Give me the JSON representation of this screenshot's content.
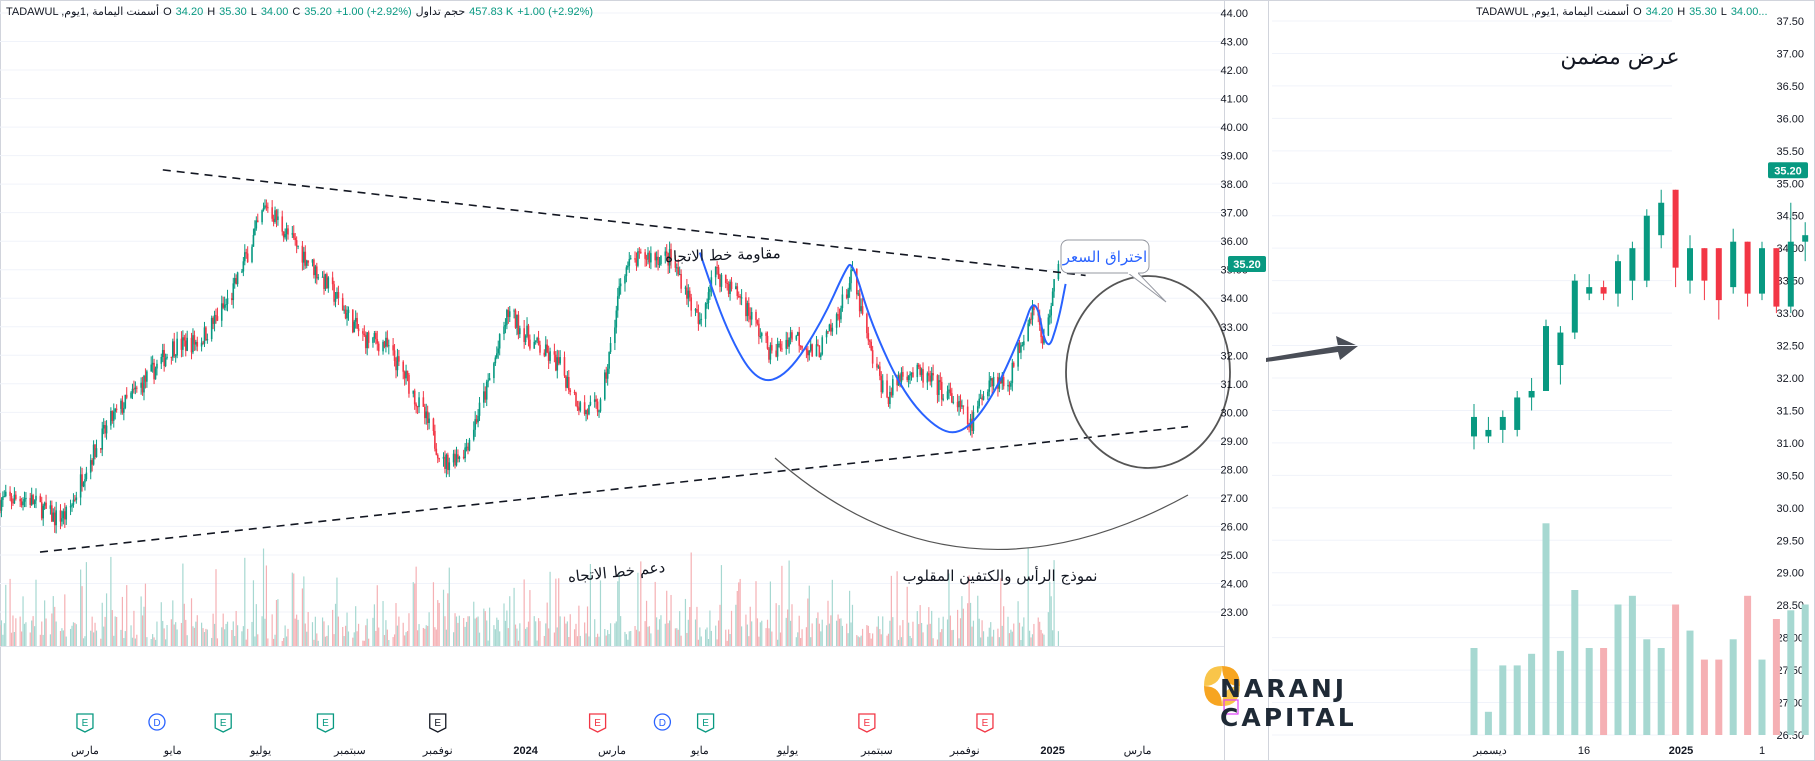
{
  "header": {
    "main": {
      "symbol": "TADAWUL ,أسمنت اليمامة ,1يوم",
      "open_label": "O",
      "open": "34.20",
      "high_label": "H",
      "high": "35.30",
      "low_label": "L",
      "low": "34.00",
      "close_label": "C",
      "close": "35.20",
      "change": "+1.00 (+2.92%)",
      "volume_label": "حجم تداول",
      "volume": "457.83 K",
      "volume_change": "+1.00 (+2.92%)"
    },
    "inset": {
      "symbol": "TADAWUL ,أسمنت اليمامة ,1يوم",
      "open_label": "O",
      "open": "34.20",
      "high_label": "H",
      "high": "35.30",
      "low_label": "L",
      "low": "34.00..."
    }
  },
  "brand": {
    "line1": "NARANJ",
    "line2": "CAPITAL"
  },
  "colors": {
    "up": "#089981",
    "down": "#f23645",
    "vol_up": "#a6d8d1",
    "vol_down": "#f5b0b4",
    "pattern_line": "#2962ff",
    "annotation": "#555555",
    "trend_line": "#131722",
    "grid": "#f0f3fa",
    "brand_orange": "#f7a521"
  },
  "chart_data": [
    {
      "id": "main",
      "type": "candlestick",
      "title": "",
      "xlabel": "",
      "ylabel": "",
      "ylim": [
        22.5,
        44.0
      ],
      "y_ticks": [
        "23.00",
        "24.00",
        "25.00",
        "26.00",
        "27.00",
        "28.00",
        "29.00",
        "30.00",
        "31.00",
        "32.00",
        "33.00",
        "34.00",
        "35.00",
        "36.00",
        "37.00",
        "38.00",
        "39.00",
        "40.00",
        "41.00",
        "42.00",
        "43.00",
        "44.00"
      ],
      "x_range": [
        "2023-01-01",
        "2025-04-30"
      ],
      "x_ticks": [
        {
          "date": "2023-03-01",
          "label": "مارس"
        },
        {
          "date": "2023-05-01",
          "label": "مايو"
        },
        {
          "date": "2023-07-01",
          "label": "يوليو"
        },
        {
          "date": "2023-09-01",
          "label": "سبتمبر"
        },
        {
          "date": "2023-11-01",
          "label": "نوفمبر"
        },
        {
          "date": "2024-01-01",
          "label": "2024",
          "bold": true
        },
        {
          "date": "2024-03-01",
          "label": "مارس"
        },
        {
          "date": "2024-05-01",
          "label": "مايو"
        },
        {
          "date": "2024-07-01",
          "label": "يوليو"
        },
        {
          "date": "2024-09-01",
          "label": "سبتمبر"
        },
        {
          "date": "2024-11-01",
          "label": "نوفمبر"
        },
        {
          "date": "2025-01-01",
          "label": "2025",
          "bold": true
        },
        {
          "date": "2025-03-01",
          "label": "مارس"
        },
        {
          "date": "2025-05-01",
          "label": "مايو"
        }
      ],
      "price_path": [
        [
          "2023-01-01",
          26.9
        ],
        [
          "2023-01-20",
          27.0
        ],
        [
          "2023-02-08",
          26.3
        ],
        [
          "2023-02-17",
          26.4
        ],
        [
          "2023-03-01",
          28.0
        ],
        [
          "2023-03-20",
          29.8
        ],
        [
          "2023-04-15",
          31.3
        ],
        [
          "2023-05-01",
          32.3
        ],
        [
          "2023-05-20",
          32.5
        ],
        [
          "2023-06-10",
          34.0
        ],
        [
          "2023-06-25",
          36.0
        ],
        [
          "2023-07-05",
          37.3
        ],
        [
          "2023-07-20",
          36.2
        ],
        [
          "2023-08-05",
          35.2
        ],
        [
          "2023-08-20",
          34.2
        ],
        [
          "2023-09-10",
          32.6
        ],
        [
          "2023-09-25",
          32.4
        ],
        [
          "2023-10-10",
          31.2
        ],
        [
          "2023-10-25",
          29.6
        ],
        [
          "2023-11-05",
          28.2
        ],
        [
          "2023-11-20",
          28.7
        ],
        [
          "2023-12-05",
          30.8
        ],
        [
          "2023-12-20",
          33.5
        ],
        [
          "2024-01-05",
          32.5
        ],
        [
          "2024-01-25",
          31.6
        ],
        [
          "2024-02-10",
          30.0
        ],
        [
          "2024-02-22",
          30.2
        ],
        [
          "2024-03-01",
          32.5
        ],
        [
          "2024-03-08",
          35.0
        ],
        [
          "2024-03-25",
          35.5
        ],
        [
          "2024-04-10",
          35.4
        ],
        [
          "2024-04-20",
          34.5
        ],
        [
          "2024-05-01",
          33.0
        ],
        [
          "2024-05-10",
          35.0
        ],
        [
          "2024-05-30",
          34.0
        ],
        [
          "2024-06-20",
          32.0
        ],
        [
          "2024-07-05",
          32.8
        ],
        [
          "2024-07-20",
          32.0
        ],
        [
          "2024-08-01",
          32.9
        ],
        [
          "2024-08-15",
          34.8
        ],
        [
          "2024-08-28",
          32.0
        ],
        [
          "2024-09-08",
          30.5
        ],
        [
          "2024-09-20",
          31.5
        ],
        [
          "2024-10-05",
          31.2
        ],
        [
          "2024-10-25",
          30.4
        ],
        [
          "2024-11-05",
          29.5
        ],
        [
          "2024-11-18",
          31.2
        ],
        [
          "2024-12-01",
          31.0
        ],
        [
          "2024-12-10",
          32.5
        ],
        [
          "2024-12-20",
          34.0
        ],
        [
          "2024-12-25",
          32.3
        ],
        [
          "2025-01-01",
          34.1
        ],
        [
          "2025-01-05",
          35.2
        ]
      ],
      "current_price": "35.20",
      "annotations": {
        "resistance": "مقاومة خط الاتجاه",
        "support": "دعم خط الاتجاه",
        "pattern": "نموذج الرأس والكتفين المقلوب",
        "breakout": "اختراق السعر"
      },
      "resistance_line": [
        [
          "2023-05-01",
          38.1
        ],
        [
          "2025-01-10",
          34.8
        ]
      ],
      "support_line": [
        [
          "2023-01-20",
          25.6
        ],
        [
          "2025-01-10",
          29.6
        ]
      ],
      "pattern_curve": [
        [
          "2024-05-01",
          35.6
        ],
        [
          "2024-05-20",
          32.8
        ],
        [
          "2024-06-10",
          31.0
        ],
        [
          "2024-07-01",
          31.3
        ],
        [
          "2024-07-25",
          33.2
        ],
        [
          "2024-08-10",
          35.0
        ],
        [
          "2024-08-15",
          35.3
        ],
        [
          "2024-08-28",
          33.1
        ],
        [
          "2024-09-20",
          30.6
        ],
        [
          "2024-10-15",
          29.3
        ],
        [
          "2024-11-01",
          29.3
        ],
        [
          "2024-11-20",
          30.5
        ],
        [
          "2024-12-10",
          32.7
        ],
        [
          "2024-12-20",
          34.2
        ],
        [
          "2024-12-28",
          32.0
        ],
        [
          "2025-01-05",
          33.2
        ],
        [
          "2025-01-10",
          34.5
        ]
      ],
      "volume_markers": [
        {
          "date": "2023-03-01",
          "label": "E",
          "kind": "earnings"
        },
        {
          "date": "2023-04-20",
          "label": "D",
          "kind": "dividend"
        },
        {
          "date": "2023-06-05",
          "label": "E",
          "kind": "earnings"
        },
        {
          "date": "2023-08-15",
          "label": "E",
          "kind": "earnings"
        },
        {
          "date": "2023-11-01",
          "label": "E",
          "kind": "past"
        },
        {
          "date": "2024-02-20",
          "label": "E",
          "kind": "earnings-red"
        },
        {
          "date": "2024-04-05",
          "label": "D",
          "kind": "dividend"
        },
        {
          "date": "2024-05-05",
          "label": "E",
          "kind": "earnings"
        },
        {
          "date": "2024-08-25",
          "label": "E",
          "kind": "earnings-red"
        },
        {
          "date": "2024-11-15",
          "label": "E",
          "kind": "earnings-red"
        }
      ]
    },
    {
      "id": "inset",
      "type": "candlestick",
      "title": "عرض مضمن",
      "xlabel": "",
      "ylabel": "",
      "ylim": [
        26.3,
        37.6
      ],
      "y_ticks": [
        "26.50",
        "27.00",
        "27.50",
        "28.00",
        "28.50",
        "29.00",
        "29.50",
        "30.00",
        "30.50",
        "31.00",
        "31.50",
        "32.00",
        "32.50",
        "33.00",
        "33.50",
        "34.00",
        "34.50",
        "35.00",
        "35.50",
        "36.00",
        "36.50",
        "37.00",
        "37.50"
      ],
      "x_ticks": [
        {
          "label": "ديسمبر",
          "index": 2
        },
        {
          "label": "16",
          "index": 10
        },
        {
          "label": "2025",
          "index": 20,
          "bold": true
        },
        {
          "label": "1",
          "index": 27
        }
      ],
      "candles": [
        {
          "o": 31.1,
          "h": 31.6,
          "l": 30.9,
          "c": 31.4
        },
        {
          "o": 31.1,
          "h": 31.4,
          "l": 31.0,
          "c": 31.2
        },
        {
          "o": 31.2,
          "h": 31.5,
          "l": 31.0,
          "c": 31.4
        },
        {
          "o": 31.2,
          "h": 31.8,
          "l": 31.1,
          "c": 31.7
        },
        {
          "o": 31.7,
          "h": 32.0,
          "l": 31.5,
          "c": 31.8
        },
        {
          "o": 31.8,
          "h": 32.9,
          "l": 31.8,
          "c": 32.8
        },
        {
          "o": 32.2,
          "h": 32.8,
          "l": 31.9,
          "c": 32.7
        },
        {
          "o": 32.7,
          "h": 33.6,
          "l": 32.6,
          "c": 33.5
        },
        {
          "o": 33.3,
          "h": 33.6,
          "l": 33.2,
          "c": 33.4
        },
        {
          "o": 33.4,
          "h": 33.5,
          "l": 33.2,
          "c": 33.3
        },
        {
          "o": 33.3,
          "h": 33.9,
          "l": 33.1,
          "c": 33.8
        },
        {
          "o": 33.5,
          "h": 34.1,
          "l": 33.2,
          "c": 34.0
        },
        {
          "o": 33.5,
          "h": 34.6,
          "l": 33.4,
          "c": 34.5
        },
        {
          "o": 34.2,
          "h": 34.9,
          "l": 34.0,
          "c": 34.7
        },
        {
          "o": 34.9,
          "h": 34.9,
          "l": 33.4,
          "c": 33.7
        },
        {
          "o": 33.5,
          "h": 34.2,
          "l": 33.3,
          "c": 34.0
        },
        {
          "o": 34.0,
          "h": 34.0,
          "l": 33.2,
          "c": 33.5
        },
        {
          "o": 34.0,
          "h": 34.0,
          "l": 32.9,
          "c": 33.2
        },
        {
          "o": 33.4,
          "h": 34.3,
          "l": 33.3,
          "c": 34.1
        },
        {
          "o": 34.1,
          "h": 34.1,
          "l": 33.1,
          "c": 33.3
        },
        {
          "o": 33.3,
          "h": 34.1,
          "l": 33.2,
          "c": 34.0
        },
        {
          "o": 34.0,
          "h": 34.0,
          "l": 33.0,
          "c": 33.1
        },
        {
          "o": 33.1,
          "h": 34.7,
          "l": 33.0,
          "c": 34.1
        },
        {
          "o": 34.1,
          "h": 34.4,
          "l": 33.8,
          "c": 34.2
        },
        {
          "o": 34.2,
          "h": 35.3,
          "l": 34.0,
          "c": 35.2
        }
      ],
      "volumes": [
        0.3,
        0.08,
        0.24,
        0.24,
        0.28,
        0.73,
        0.29,
        0.5,
        0.3,
        0.3,
        0.45,
        0.48,
        0.33,
        0.3,
        0.45,
        0.36,
        0.26,
        0.26,
        0.33,
        0.48,
        0.26,
        0.4,
        0.43,
        0.45,
        0.59
      ],
      "current_price": "35.20"
    }
  ]
}
